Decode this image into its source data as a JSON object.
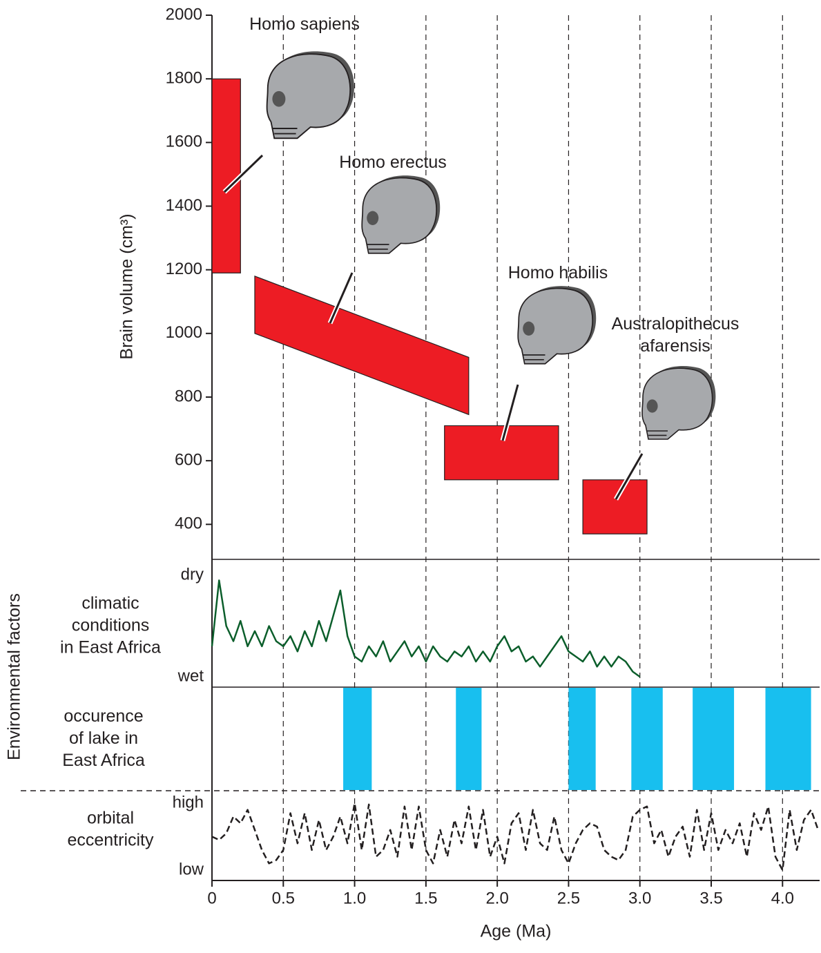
{
  "chart_data": [
    {
      "type": "range",
      "ylabel": "Brain volume (cm³)",
      "color": "#ed1c24",
      "xlim": [
        0,
        4.26
      ],
      "ylim": [
        290,
        2000
      ],
      "yticks": [
        400,
        600,
        800,
        1000,
        1200,
        1400,
        1600,
        1800,
        2000
      ],
      "species": [
        {
          "label": [
            "Homo sapiens"
          ],
          "x": [
            0,
            0.2
          ],
          "y_left": [
            1190,
            1800
          ],
          "y_right": [
            1190,
            1800
          ]
        },
        {
          "label": [
            "Homo erectus"
          ],
          "x": [
            0.3,
            1.8
          ],
          "y_left": [
            1000,
            1180
          ],
          "y_right": [
            745,
            925
          ]
        },
        {
          "label": [
            "Homo habilis"
          ],
          "x": [
            1.63,
            2.43
          ],
          "y_left": [
            540,
            710
          ],
          "y_right": [
            540,
            710
          ]
        },
        {
          "label": [
            "Australopithecus",
            "afarensis"
          ],
          "x": [
            2.6,
            3.05
          ],
          "y_left": [
            370,
            540
          ],
          "y_right": [
            370,
            540
          ]
        }
      ]
    },
    {
      "type": "line",
      "group_label": "Environmental factors",
      "label": [
        "climatic",
        "conditions",
        "in East Africa"
      ],
      "xlim": [
        0,
        4.26
      ],
      "ylim": [
        0,
        1
      ],
      "yticks": [
        {
          "value": 1,
          "label": "dry"
        },
        {
          "value": 0,
          "label": "wet"
        }
      ],
      "x": [
        0,
        0.05,
        0.1,
        0.15,
        0.2,
        0.25,
        0.3,
        0.35,
        0.4,
        0.45,
        0.5,
        0.55,
        0.6,
        0.65,
        0.7,
        0.75,
        0.8,
        0.85,
        0.9,
        0.95,
        1.0,
        1.05,
        1.1,
        1.15,
        1.2,
        1.25,
        1.3,
        1.35,
        1.4,
        1.45,
        1.5,
        1.55,
        1.6,
        1.65,
        1.7,
        1.75,
        1.8,
        1.85,
        1.9,
        1.95,
        2.0,
        2.05,
        2.1,
        2.15,
        2.2,
        2.25,
        2.3,
        2.35,
        2.4,
        2.45,
        2.5,
        2.55,
        2.6,
        2.65,
        2.7,
        2.75,
        2.8,
        2.85,
        2.9,
        2.95,
        3.0
      ],
      "series": [
        {
          "color": "#0b5e2b",
          "values": [
            0.3,
            0.95,
            0.5,
            0.35,
            0.55,
            0.3,
            0.45,
            0.3,
            0.5,
            0.35,
            0.3,
            0.4,
            0.25,
            0.45,
            0.3,
            0.55,
            0.35,
            0.6,
            0.85,
            0.4,
            0.2,
            0.15,
            0.3,
            0.2,
            0.35,
            0.15,
            0.25,
            0.35,
            0.2,
            0.3,
            0.15,
            0.3,
            0.2,
            0.15,
            0.25,
            0.2,
            0.3,
            0.15,
            0.25,
            0.15,
            0.3,
            0.4,
            0.25,
            0.3,
            0.15,
            0.2,
            0.1,
            0.2,
            0.3,
            0.4,
            0.25,
            0.2,
            0.15,
            0.25,
            0.1,
            0.2,
            0.1,
            0.2,
            0.15,
            0.05,
            0.0
          ]
        }
      ]
    },
    {
      "type": "span",
      "label": [
        "occurence",
        "of lake in",
        "East Africa"
      ],
      "xlim": [
        0,
        4.26
      ],
      "color": "#18bfef",
      "spans": [
        [
          0.92,
          1.12
        ],
        [
          1.71,
          1.89
        ],
        [
          2.5,
          2.69
        ],
        [
          2.94,
          3.16
        ],
        [
          3.37,
          3.66
        ],
        [
          3.88,
          4.2
        ]
      ]
    },
    {
      "type": "line",
      "label": [
        "orbital",
        "eccentricity"
      ],
      "xlabel": "Age (Ma)",
      "xlim": [
        0,
        4.26
      ],
      "xticks": [
        0,
        0.5,
        {
          "value": 1,
          "label": "1.0"
        },
        1.5,
        {
          "value": 2,
          "label": "2.0"
        },
        2.5,
        {
          "value": 3,
          "label": "3.0"
        },
        3.5,
        {
          "value": 4,
          "label": "4.0"
        }
      ],
      "ylim": [
        0,
        1
      ],
      "yticks": [
        {
          "value": 1,
          "label": "high"
        },
        {
          "value": 0,
          "label": "low"
        }
      ],
      "x": [
        0,
        0.05,
        0.1,
        0.15,
        0.2,
        0.25,
        0.3,
        0.35,
        0.4,
        0.45,
        0.5,
        0.55,
        0.6,
        0.65,
        0.7,
        0.75,
        0.8,
        0.85,
        0.9,
        0.95,
        1.0,
        1.05,
        1.1,
        1.15,
        1.2,
        1.25,
        1.3,
        1.35,
        1.4,
        1.45,
        1.5,
        1.55,
        1.6,
        1.65,
        1.7,
        1.75,
        1.8,
        1.85,
        1.9,
        1.95,
        2.0,
        2.05,
        2.1,
        2.15,
        2.2,
        2.25,
        2.3,
        2.35,
        2.4,
        2.45,
        2.5,
        2.55,
        2.6,
        2.65,
        2.7,
        2.75,
        2.8,
        2.85,
        2.9,
        2.95,
        3.0,
        3.05,
        3.1,
        3.15,
        3.2,
        3.25,
        3.3,
        3.35,
        3.4,
        3.45,
        3.5,
        3.55,
        3.6,
        3.65,
        3.7,
        3.75,
        3.8,
        3.85,
        3.9,
        3.95,
        4.0,
        4.05,
        4.1,
        4.15,
        4.2,
        4.25
      ],
      "series": [
        {
          "color": "#231f20",
          "values": [
            0.5,
            0.45,
            0.55,
            0.8,
            0.7,
            0.9,
            0.6,
            0.3,
            0.1,
            0.15,
            0.3,
            0.85,
            0.4,
            0.85,
            0.3,
            0.75,
            0.3,
            0.5,
            0.8,
            0.4,
            1.0,
            0.3,
            0.98,
            0.2,
            0.3,
            0.6,
            0.2,
            0.95,
            0.3,
            0.95,
            0.3,
            0.1,
            0.6,
            0.2,
            0.75,
            0.4,
            0.95,
            0.3,
            0.9,
            0.2,
            0.5,
            0.1,
            0.7,
            0.85,
            0.3,
            0.9,
            0.4,
            0.3,
            0.8,
            0.3,
            0.1,
            0.4,
            0.6,
            0.7,
            0.65,
            0.3,
            0.2,
            0.15,
            0.3,
            0.8,
            0.9,
            0.95,
            0.4,
            0.6,
            0.2,
            0.5,
            0.65,
            0.2,
            0.9,
            0.3,
            0.85,
            0.3,
            0.6,
            0.4,
            0.7,
            0.2,
            0.85,
            0.6,
            0.95,
            0.2,
            0.0,
            0.9,
            0.3,
            0.75,
            0.9,
            0.6
          ]
        }
      ]
    }
  ]
}
